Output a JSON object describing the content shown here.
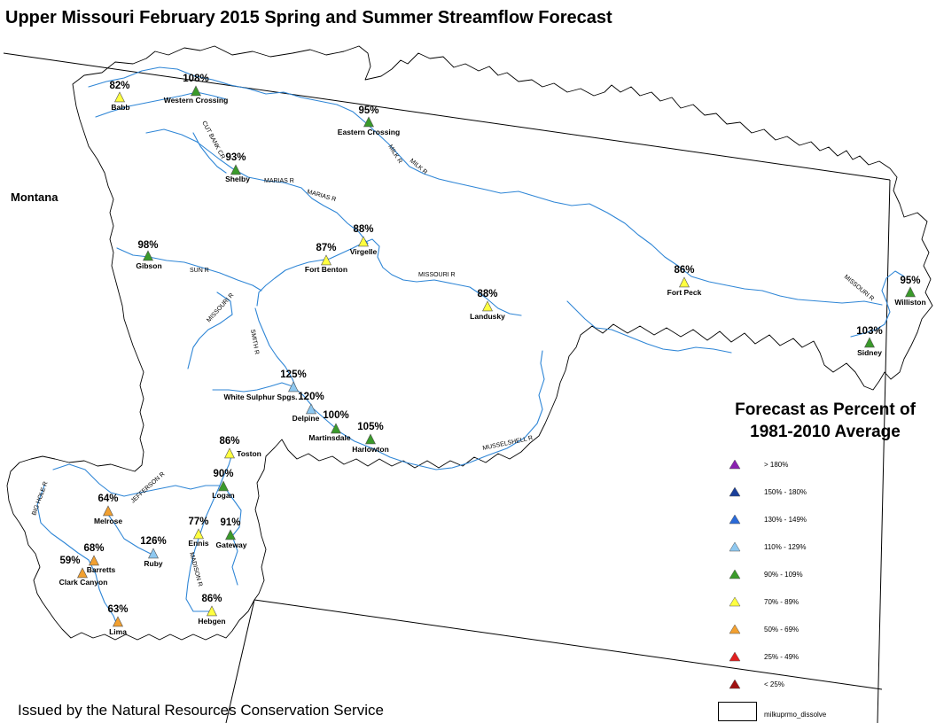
{
  "title": "Upper Missouri February 2015 Spring and Summer Streamflow Forecast",
  "state_label": "Montana",
  "footer": "Issued by the Natural Resources Conservation Service",
  "legend": {
    "title_line1": "Forecast as Percent of",
    "title_line2": "1981-2010 Average",
    "classes": [
      {
        "label": "> 180%",
        "color": "#8a20b0"
      },
      {
        "label": "150% - 180%",
        "color": "#1a3f9a"
      },
      {
        "label": "130% - 149%",
        "color": "#2a6ad8"
      },
      {
        "label": "110% - 129%",
        "color": "#8ec8f0"
      },
      {
        "label": "90% - 109%",
        "color": "#3a9a2a"
      },
      {
        "label": "70% - 89%",
        "color": "#ffff40"
      },
      {
        "label": "50% - 69%",
        "color": "#f2a030"
      },
      {
        "label": "25% - 49%",
        "color": "#e02020"
      },
      {
        "label": "< 25%",
        "color": "#a01010"
      }
    ],
    "boundary_label": "milkuprmo_dissolve"
  },
  "rivers": [
    "CUT BANK CR",
    "MARIAS R",
    "MARIAS R",
    "MILK R",
    "MILK R",
    "SUN R",
    "MISSOURI R",
    "MISSOURI R",
    "MISSOURI R",
    "SMITH R",
    "MUSSELSHELL R",
    "JEFFERSON R",
    "BIG HOLE R",
    "MADISON R"
  ],
  "stations": [
    {
      "name": "Babb",
      "pct": "82%",
      "cls": 5
    },
    {
      "name": "Western Crossing",
      "pct": "108%",
      "cls": 4
    },
    {
      "name": "Eastern Crossing",
      "pct": "95%",
      "cls": 4
    },
    {
      "name": "Shelby",
      "pct": "93%",
      "cls": 4
    },
    {
      "name": "Gibson",
      "pct": "98%",
      "cls": 4
    },
    {
      "name": "Virgelle",
      "pct": "88%",
      "cls": 5
    },
    {
      "name": "Fort Benton",
      "pct": "87%",
      "cls": 5
    },
    {
      "name": "Landusky",
      "pct": "88%",
      "cls": 5
    },
    {
      "name": "Fort Peck",
      "pct": "86%",
      "cls": 5
    },
    {
      "name": "Williston",
      "pct": "95%",
      "cls": 4
    },
    {
      "name": "Sidney",
      "pct": "103%",
      "cls": 4
    },
    {
      "name": "White Sulphur Spgs.",
      "pct": "125%",
      "cls": 3
    },
    {
      "name": "Delpine",
      "pct": "120%",
      "cls": 3
    },
    {
      "name": "Martinsdale",
      "pct": "100%",
      "cls": 4
    },
    {
      "name": "Harlowton",
      "pct": "105%",
      "cls": 4
    },
    {
      "name": "Toston",
      "pct": "86%",
      "cls": 5
    },
    {
      "name": "Logan",
      "pct": "90%",
      "cls": 4
    },
    {
      "name": "Melrose",
      "pct": "64%",
      "cls": 6
    },
    {
      "name": "Ennis",
      "pct": "77%",
      "cls": 5
    },
    {
      "name": "Gateway",
      "pct": "91%",
      "cls": 4
    },
    {
      "name": "Ruby",
      "pct": "126%",
      "cls": 3
    },
    {
      "name": "Barretts",
      "pct": "68%",
      "cls": 6
    },
    {
      "name": "Clark Canyon",
      "pct": "59%",
      "cls": 6
    },
    {
      "name": "Lima",
      "pct": "63%",
      "cls": 6
    },
    {
      "name": "Hebgen",
      "pct": "86%",
      "cls": 5
    }
  ]
}
